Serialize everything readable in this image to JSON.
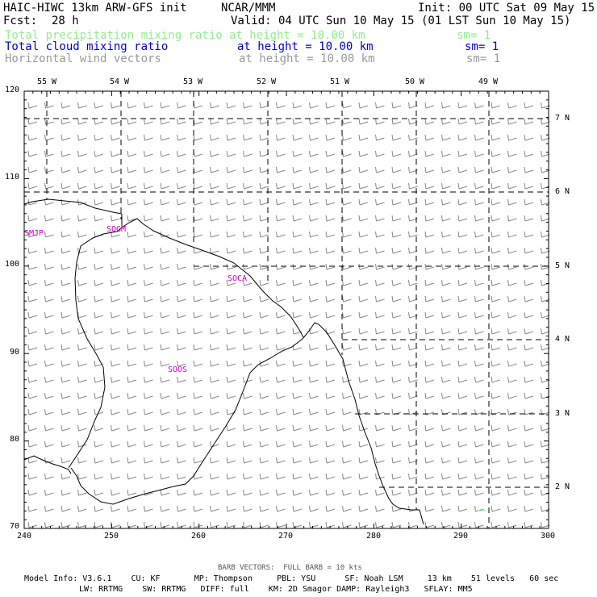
{
  "header": {
    "model_title": "HAIC-HIWC 13km ARW-GFS init",
    "org": "NCAR/MMM",
    "init": "Init: 00 UTC Sat 09 May 15",
    "fcst_label": "Fcst:",
    "fcst_value": "28 h",
    "valid": "Valid: 04 UTC Sun 10 May 15 (01 LST Sun 10 May 15)"
  },
  "fields": [
    {
      "name": "Total precipitation mixing ratio",
      "level": "at height = 10.00 km",
      "sm": "sm= 1",
      "color": "#90ee90"
    },
    {
      "name": "Total cloud mixing ratio",
      "level": "at height = 10.00 km",
      "sm": "sm= 1",
      "color": "#0000cd"
    },
    {
      "name": "Horizontal wind vectors",
      "level": "at height = 10.00 km",
      "sm": "sm= 1",
      "color": "#999999"
    }
  ],
  "axes": {
    "left_y": [
      "120",
      "110",
      "100",
      "90",
      "80",
      "70"
    ],
    "bottom_x": [
      "240",
      "250",
      "260",
      "270",
      "280",
      "290",
      "300"
    ],
    "top_lon": [
      "55 W",
      "54 W",
      "53 W",
      "52 W",
      "51 W",
      "50 W",
      "49 W"
    ],
    "right_lat": [
      "7 N",
      "6 N",
      "5 N",
      "4 N",
      "3 N",
      "2 N"
    ]
  },
  "stations": [
    "SMJP",
    "SOGM",
    "SOCA",
    "SOOS"
  ],
  "station_color": "#cc00cc",
  "barb_color": "#888888",
  "footer": {
    "barb_note": "BARB VECTORS:  FULL BARB = 10 kts",
    "line1": "Model Info: V3.6.1    CU: KF       MP: Thompson     PBL: YSU      SF: Noah LSM     13 km    51 levels   60 sec",
    "line2": "LW: RRTMG    SW: RRTMG   DIFF: full    KM: 2D Smagor DAMP: Rayleigh3   SFLAY: MM5"
  }
}
